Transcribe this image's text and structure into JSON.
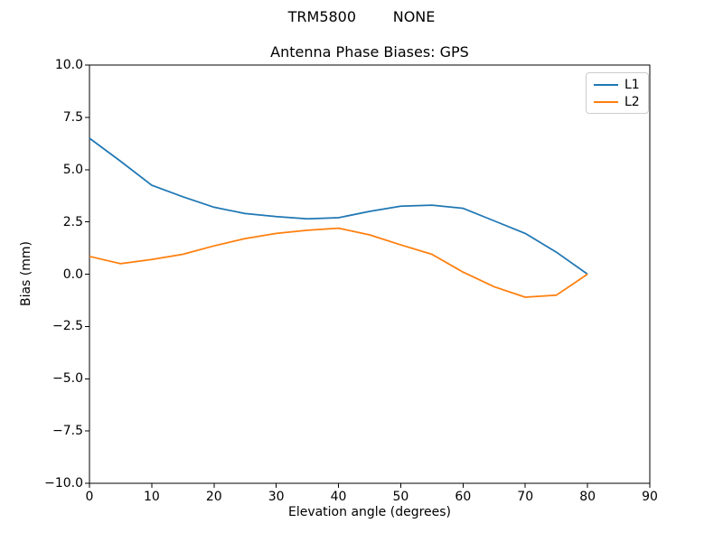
{
  "figure": {
    "suptitle": "TRM5800        NONE"
  },
  "chart_data": {
    "type": "line",
    "title": "Antenna Phase Biases: GPS",
    "xlabel": "Elevation angle (degrees)",
    "ylabel": "Bias (mm)",
    "xlim": [
      0,
      90
    ],
    "ylim": [
      -10,
      10
    ],
    "grid": false,
    "legend_position": "upper right",
    "xticks": [
      0,
      10,
      20,
      30,
      40,
      50,
      60,
      70,
      80,
      90
    ],
    "xtick_labels": [
      "0",
      "10",
      "20",
      "30",
      "40",
      "50",
      "60",
      "70",
      "80",
      "90"
    ],
    "yticks": [
      10,
      7.5,
      5,
      2.5,
      0,
      -2.5,
      -5,
      -7.5,
      -10
    ],
    "ytick_labels": [
      "10.0",
      "7.5",
      "5.0",
      "2.5",
      "0.0",
      "−2.5",
      "−5.0",
      "−7.5",
      "−10.0"
    ],
    "x": [
      0,
      5,
      10,
      15,
      20,
      25,
      30,
      35,
      40,
      45,
      50,
      55,
      60,
      65,
      70,
      75,
      80
    ],
    "series": [
      {
        "name": "L1",
        "color": "#1f77b4",
        "values": [
          6.5,
          5.4,
          4.25,
          3.7,
          3.2,
          2.9,
          2.75,
          2.65,
          2.7,
          3.0,
          3.25,
          3.3,
          3.15,
          2.55,
          1.95,
          1.05,
          0.0
        ]
      },
      {
        "name": "L2",
        "color": "#ff7f0e",
        "values": [
          0.85,
          0.5,
          0.7,
          0.95,
          1.35,
          1.7,
          1.95,
          2.1,
          2.2,
          1.88,
          1.4,
          0.95,
          0.1,
          -0.6,
          -1.1,
          -1.0,
          0.0
        ]
      }
    ]
  }
}
